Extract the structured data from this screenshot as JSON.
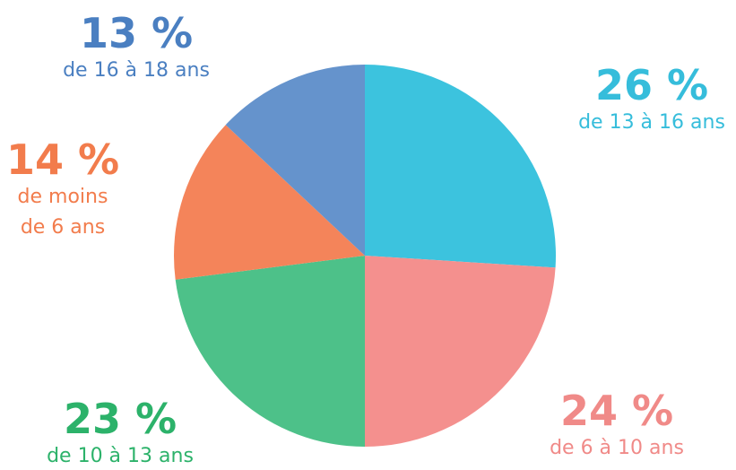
{
  "chart_data": {
    "type": "pie",
    "categories": [
      "de 13 à 16 ans",
      "de 6 à 10 ans",
      "de 10 à 13 ans",
      "de moins de 6 ans",
      "de 16 à 18 ans"
    ],
    "values": [
      26,
      24,
      23,
      14,
      13
    ],
    "value_labels": [
      "26 %",
      "24 %",
      "23 %",
      "14 %",
      "13 %"
    ],
    "colors": [
      "#3cc3de",
      "#f4908e",
      "#4dc189",
      "#f4845a",
      "#6593cc"
    ],
    "label_colors": [
      "#36bddb",
      "#f08a88",
      "#2cb26a",
      "#f27c4c",
      "#4a7fc1"
    ]
  }
}
